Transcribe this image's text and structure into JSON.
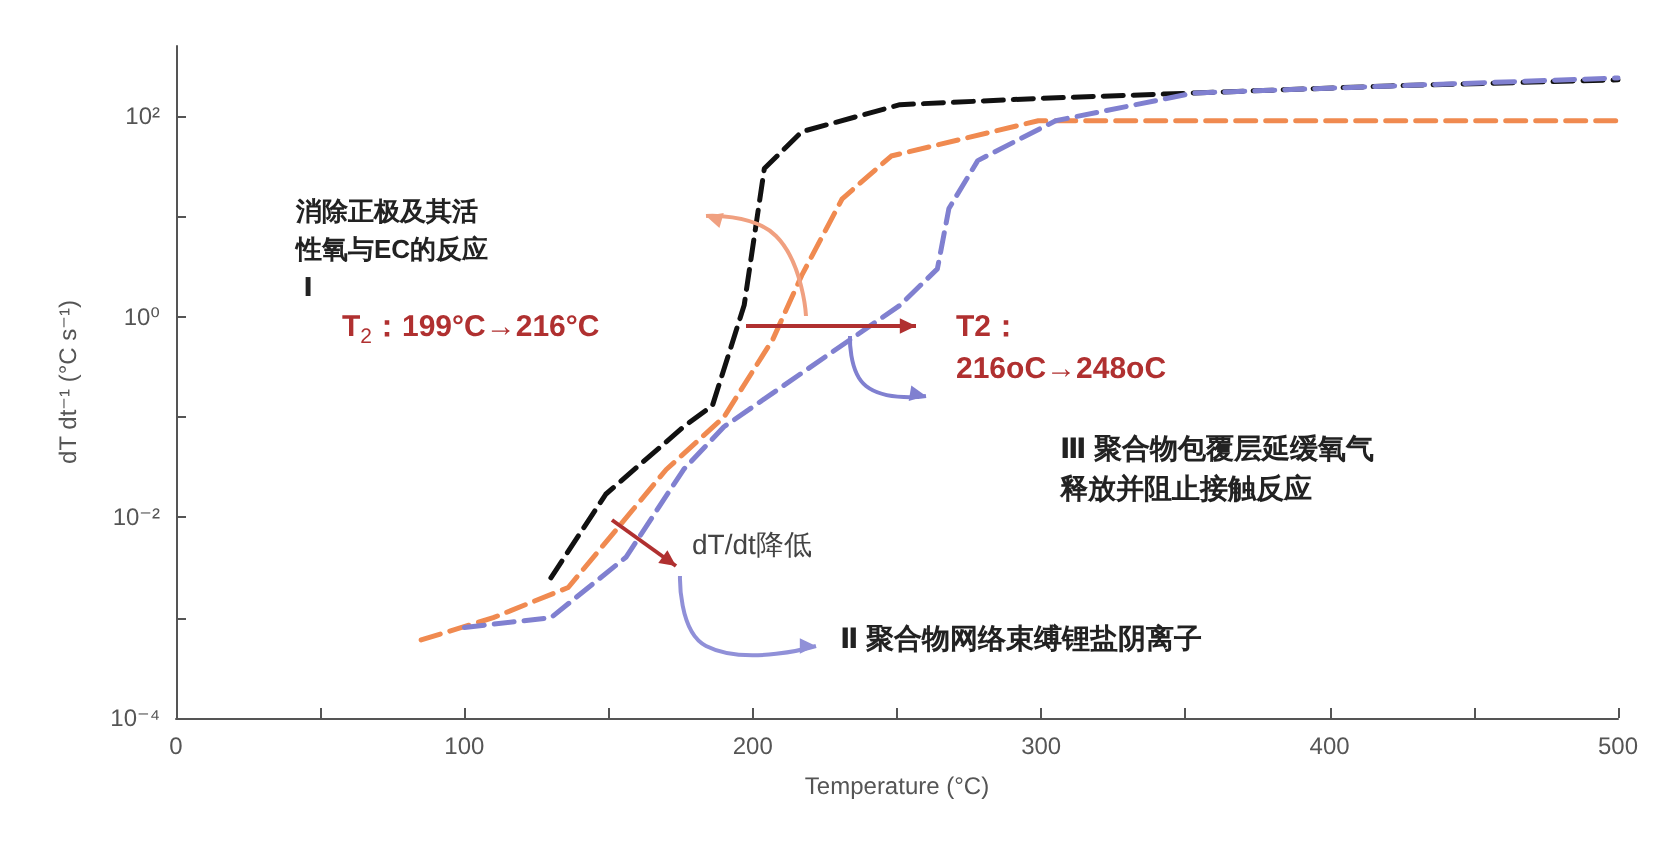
{
  "chart_data": {
    "type": "line",
    "xlabel": "Temperature (°C)",
    "ylabel": "dT dt⁻¹ (°C s⁻¹)",
    "log": "y",
    "line_style": "dashed",
    "marker": "none",
    "grid": false,
    "xlim": [
      0,
      500
    ],
    "xticks": [
      0,
      {
        "value": 50,
        "label": null
      },
      100,
      {
        "value": 150,
        "label": null
      },
      200,
      {
        "value": 250,
        "label": null
      },
      300,
      {
        "value": 350,
        "label": null
      },
      400,
      {
        "value": 450,
        "label": null
      },
      500
    ],
    "ylim": [
      0.0001,
      500
    ],
    "yticks": [
      {
        "value": 0.0001,
        "label": "10⁻⁴"
      },
      {
        "value": 0.001,
        "label": null
      },
      {
        "value": 0.01,
        "label": "10⁻²"
      },
      {
        "value": 0.1,
        "label": null
      },
      {
        "value": 1,
        "label": "10⁰"
      },
      {
        "value": 10,
        "label": null
      },
      {
        "value": 100,
        "label": "10²"
      }
    ],
    "series": [
      {
        "color": "#111111",
        "x": [
          130,
          149,
          176,
          186,
          197,
          204,
          217,
          251,
          299,
          353,
          421,
          500
        ],
        "values": [
          0.0025,
          0.017,
          0.08,
          0.13,
          1.3,
          30,
          70,
          130,
          150,
          170,
          200,
          230
        ]
      },
      {
        "color": "#f08a50",
        "x": [
          85,
          110,
          136,
          170,
          190,
          207,
          217,
          231,
          248,
          299,
          387,
          500
        ],
        "values": [
          0.0006,
          0.001,
          0.002,
          0.03,
          0.1,
          0.6,
          2.6,
          15,
          40,
          90,
          90,
          90
        ]
      },
      {
        "color": "#8080d0",
        "x": [
          100,
          130,
          156,
          176,
          190,
          251,
          264,
          268,
          278,
          305,
          353,
          500
        ],
        "values": [
          0.0008,
          0.001,
          0.004,
          0.03,
          0.08,
          1.3,
          3,
          12,
          36,
          90,
          170,
          240
        ]
      }
    ],
    "annotations": [
      "消除正极及其活性氧与EC的反应 Ⅰ",
      "T$_{2}$：199°C→216°C",
      "T2：\n216oC→248oC",
      "dT/dt降低",
      "Ⅲ 聚合物包覆层延缓氧气释放并阻止接触反应",
      "Ⅱ 聚合物网络束缚锂盐阴离子"
    ]
  }
}
